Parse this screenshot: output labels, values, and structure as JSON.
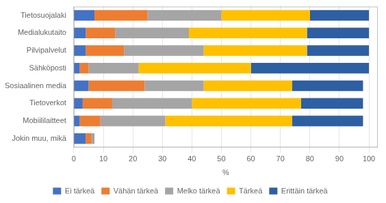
{
  "chart_data": {
    "type": "bar",
    "orientation": "horizontal",
    "stacked": true,
    "categories": [
      "Tietosuojalaki",
      "Medialukutaito",
      "Pilvipalvelut",
      "Sähköposti",
      "Sosiaalinen media",
      "Tietoverkot",
      "Mobiililaitteet",
      "Jokin muu, mikä"
    ],
    "series": [
      {
        "name": "Ei tärkeä",
        "color": "#4472c4",
        "values": [
          7,
          4,
          4,
          2,
          5,
          3,
          2,
          4
        ]
      },
      {
        "name": "Vähän tärkeä",
        "color": "#ed7d31",
        "values": [
          18,
          10,
          13,
          3,
          19,
          10,
          7,
          2
        ]
      },
      {
        "name": "Melko tärkeä",
        "color": "#a5a5a5",
        "values": [
          25,
          25,
          27,
          17,
          20,
          27,
          22,
          1
        ]
      },
      {
        "name": "Tärkeä",
        "color": "#ffc000",
        "values": [
          30,
          40,
          35,
          38,
          30,
          37,
          43,
          0
        ]
      },
      {
        "name": "Erittäin tärkeä",
        "color": "#2e5fa3",
        "values": [
          20,
          21,
          21,
          40,
          24,
          21,
          24,
          0
        ]
      }
    ],
    "xlabel": "%",
    "xlim": [
      0,
      103
    ],
    "xticks": [
      0,
      10,
      20,
      30,
      40,
      50,
      60,
      70,
      80,
      90,
      100
    ],
    "grid": true,
    "legend": "bottom"
  }
}
